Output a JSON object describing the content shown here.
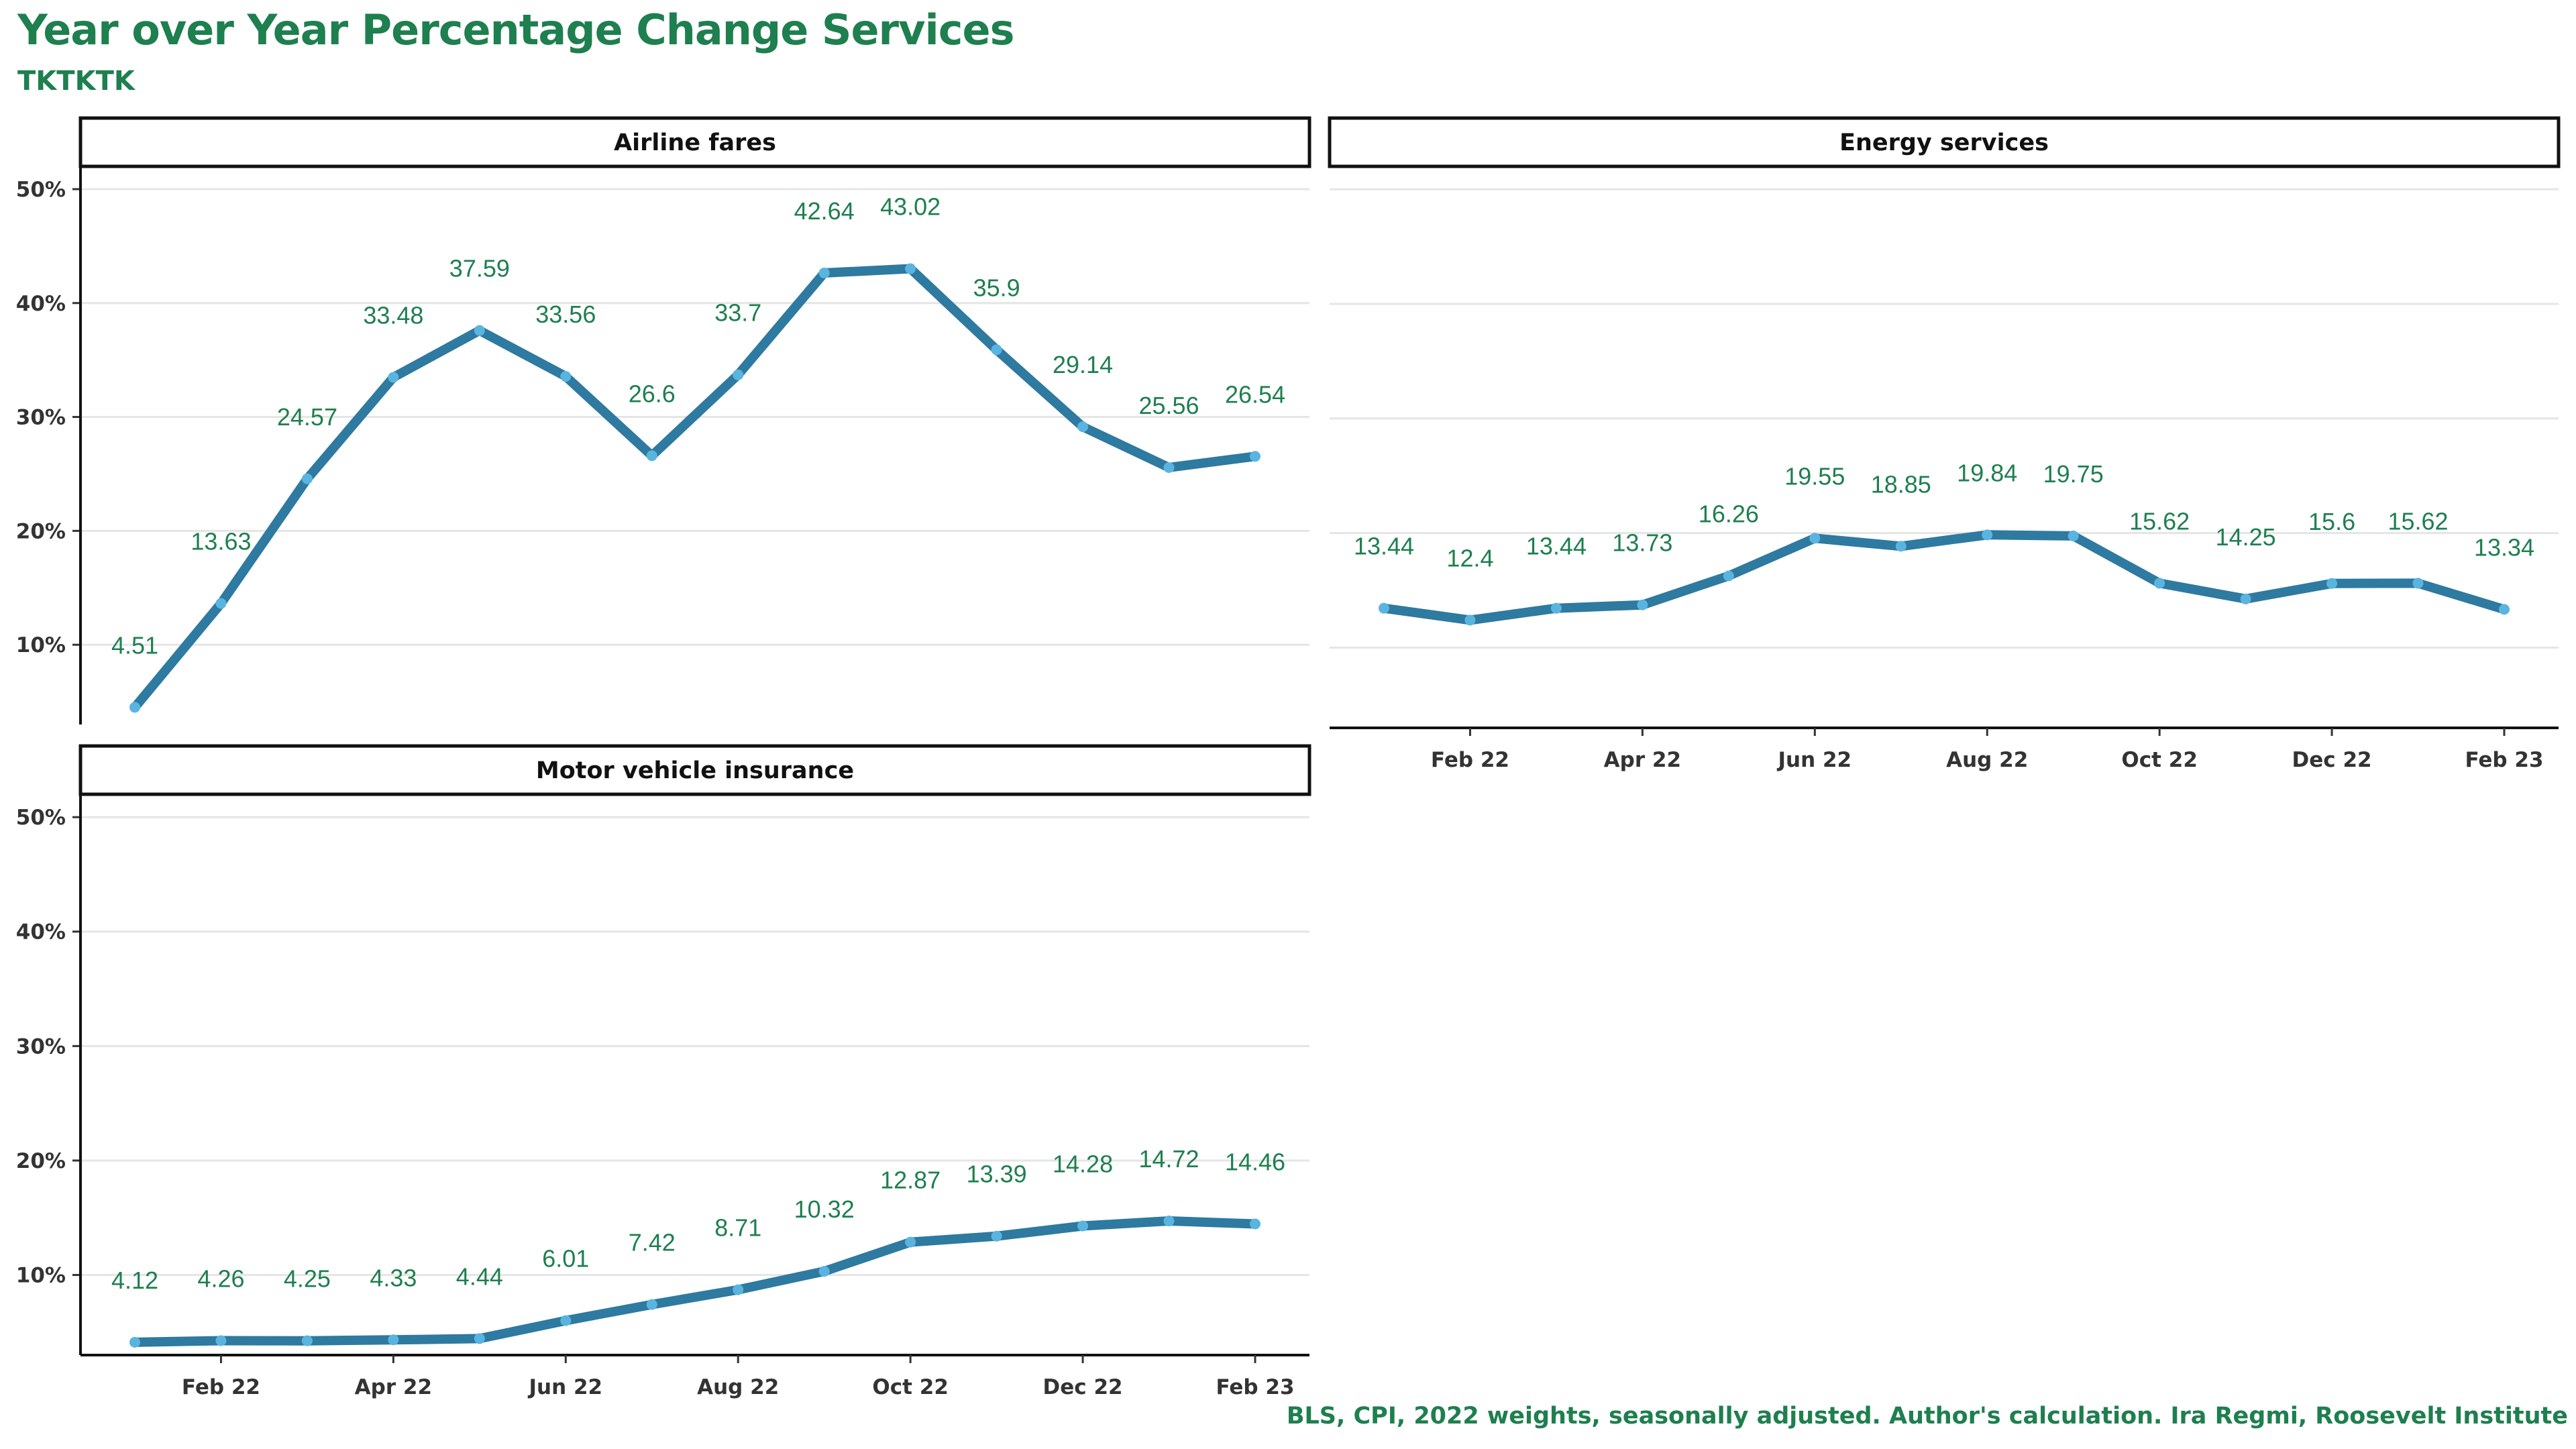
{
  "title": "Year over Year Percentage Change Services",
  "subtitle": "TKTKTK",
  "caption": "BLS, CPI, 2022 weights, seasonally adjusted. Author's calculation. Ira Regmi, Roosevelt Institute",
  "colors": {
    "line": "#2e7aa0",
    "point": "#5ab4e0",
    "label": "#1e7f4f",
    "grid": "#e5e5e5"
  },
  "chart_data": {
    "type": "line",
    "x": [
      "Jan 22",
      "Feb 22",
      "Mar 22",
      "Apr 22",
      "May 22",
      "Jun 22",
      "Jul 22",
      "Aug 22",
      "Sep 22",
      "Oct 22",
      "Nov 22",
      "Dec 22",
      "Jan 23",
      "Feb 23"
    ],
    "x_tick_labels": [
      "Feb 22",
      "Apr 22",
      "Jun 22",
      "Aug 22",
      "Oct 22",
      "Dec 22",
      "Feb 23"
    ],
    "y_tick_labels": [
      "10%",
      "20%",
      "30%",
      "40%",
      "50%"
    ],
    "ylim": [
      3,
      52
    ],
    "panels": [
      {
        "name": "Airline fares",
        "values": [
          4.51,
          13.63,
          24.57,
          33.48,
          37.59,
          33.56,
          26.6,
          33.7,
          42.64,
          43.02,
          35.9,
          29.14,
          25.56,
          26.54
        ]
      },
      {
        "name": "Energy services",
        "values": [
          13.44,
          12.4,
          13.44,
          13.73,
          16.26,
          19.55,
          18.85,
          19.84,
          19.75,
          15.62,
          14.25,
          15.6,
          15.62,
          13.34
        ]
      },
      {
        "name": "Motor vehicle insurance",
        "values": [
          4.12,
          4.26,
          4.25,
          4.33,
          4.44,
          6.01,
          7.42,
          8.71,
          10.32,
          12.87,
          13.39,
          14.28,
          14.72,
          14.46
        ]
      }
    ]
  }
}
